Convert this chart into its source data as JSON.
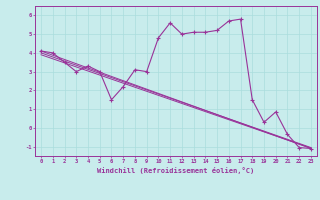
{
  "xlabel": "Windchill (Refroidissement éolien,°C)",
  "bg_color": "#c8ecec",
  "grid_color": "#aadddd",
  "line_color": "#993399",
  "xlim": [
    -0.5,
    23.5
  ],
  "ylim": [
    -1.5,
    6.5
  ],
  "yticks": [
    -1,
    0,
    1,
    2,
    3,
    4,
    5,
    6
  ],
  "xticks": [
    0,
    1,
    2,
    3,
    4,
    5,
    6,
    7,
    8,
    9,
    10,
    11,
    12,
    13,
    14,
    15,
    16,
    17,
    18,
    19,
    20,
    21,
    22,
    23
  ],
  "series1_x": [
    0,
    1,
    2,
    3,
    4,
    5,
    6,
    7,
    8,
    9,
    10,
    11,
    12,
    13,
    14,
    15,
    16,
    17,
    18,
    19,
    20,
    21,
    22,
    23
  ],
  "series1_y": [
    4.1,
    4.0,
    3.5,
    3.0,
    3.3,
    3.0,
    1.5,
    2.2,
    3.1,
    3.0,
    4.8,
    5.6,
    5.0,
    5.1,
    5.1,
    5.2,
    5.7,
    5.8,
    1.5,
    0.3,
    0.85,
    -0.35,
    -1.05,
    -1.1
  ],
  "line1_x": [
    0,
    23
  ],
  "line1_y": [
    4.0,
    -1.05
  ],
  "line2_x": [
    0,
    23
  ],
  "line2_y": [
    3.9,
    -1.08
  ],
  "line3_x": [
    0,
    23
  ],
  "line3_y": [
    4.1,
    -1.1
  ]
}
